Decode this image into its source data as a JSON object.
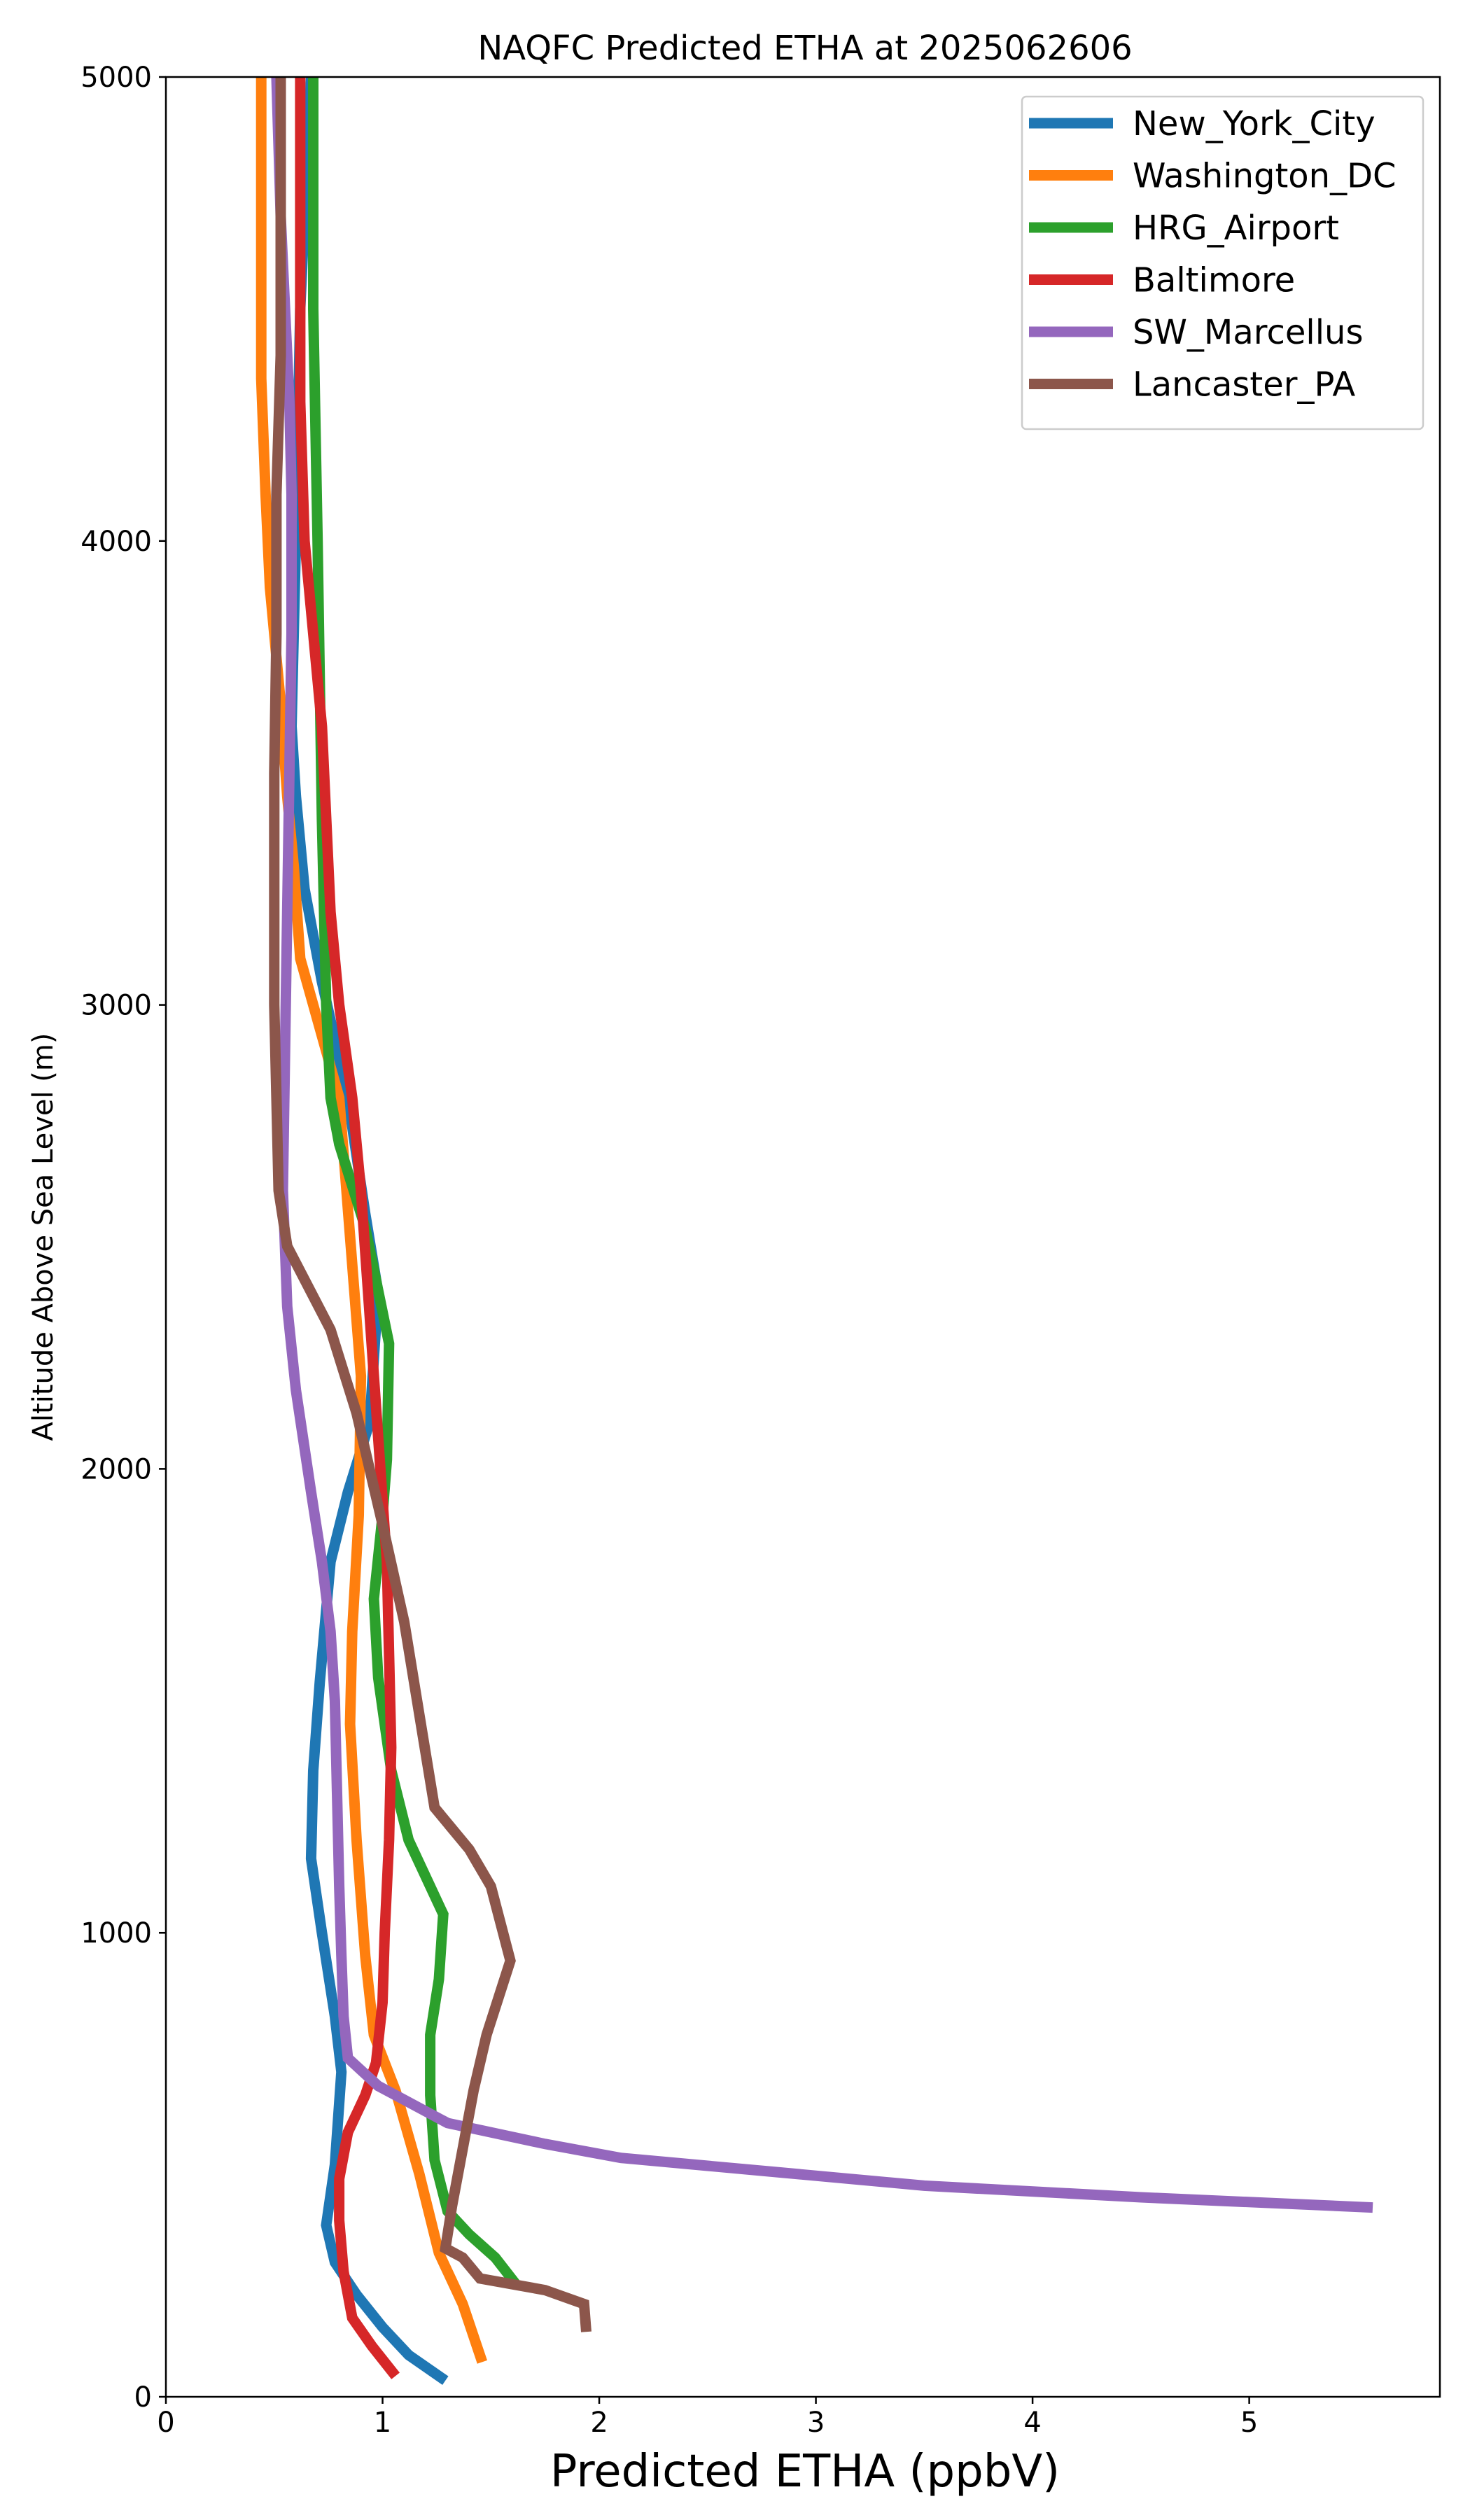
{
  "chart_data": {
    "type": "line",
    "title": "NAQFC Predicted ETHA at 2025062606",
    "xlabel": "Predicted ETHA (ppbV)",
    "ylabel": "Altitude Above Sea Level (m)",
    "xlim": [
      0,
      5.88
    ],
    "ylim": [
      0,
      5000
    ],
    "xticks": [
      0,
      1,
      2,
      3,
      4,
      5
    ],
    "yticks": [
      0,
      1000,
      2000,
      3000,
      4000,
      5000
    ],
    "xtick_labels": [
      "0",
      "1",
      "2",
      "3",
      "4",
      "5"
    ],
    "ytick_labels": [
      "0",
      "1000",
      "2000",
      "3000",
      "4000",
      "5000"
    ],
    "grid": false,
    "legend_position": "top-right",
    "series": [
      {
        "name": "New_York_City",
        "color": "#1f77b4",
        "points": [
          [
            1.29,
            35
          ],
          [
            1.12,
            90
          ],
          [
            1.0,
            150
          ],
          [
            0.88,
            220
          ],
          [
            0.78,
            290
          ],
          [
            0.74,
            370
          ],
          [
            0.78,
            500
          ],
          [
            0.81,
            700
          ],
          [
            0.78,
            820
          ],
          [
            0.72,
            1000
          ],
          [
            0.67,
            1160
          ],
          [
            0.68,
            1350
          ],
          [
            0.71,
            1540
          ],
          [
            0.76,
            1800
          ],
          [
            0.84,
            1950
          ],
          [
            0.94,
            2100
          ],
          [
            0.98,
            2380
          ],
          [
            0.92,
            2550
          ],
          [
            0.84,
            2800
          ],
          [
            0.72,
            3050
          ],
          [
            0.64,
            3250
          ],
          [
            0.6,
            3450
          ],
          [
            0.58,
            3600
          ],
          [
            0.6,
            4000
          ],
          [
            0.62,
            4500
          ],
          [
            0.67,
            5000
          ]
        ]
      },
      {
        "name": "Washington_DC",
        "color": "#ff7f0e",
        "points": [
          [
            1.46,
            75
          ],
          [
            1.37,
            200
          ],
          [
            1.26,
            310
          ],
          [
            1.17,
            480
          ],
          [
            1.06,
            660
          ],
          [
            0.96,
            780
          ],
          [
            0.92,
            950
          ],
          [
            0.88,
            1200
          ],
          [
            0.85,
            1450
          ],
          [
            0.86,
            1650
          ],
          [
            0.89,
            1900
          ],
          [
            0.9,
            2200
          ],
          [
            0.85,
            2500
          ],
          [
            0.8,
            2800
          ],
          [
            0.68,
            3000
          ],
          [
            0.62,
            3100
          ],
          [
            0.59,
            3300
          ],
          [
            0.56,
            3450
          ],
          [
            0.53,
            3650
          ],
          [
            0.48,
            3900
          ],
          [
            0.46,
            4100
          ],
          [
            0.44,
            4350
          ],
          [
            0.44,
            4800
          ],
          [
            0.44,
            5000
          ]
        ]
      },
      {
        "name": "HRG_Airport",
        "color": "#2ca02c",
        "points": [
          [
            1.62,
            240
          ],
          [
            1.52,
            300
          ],
          [
            1.4,
            350
          ],
          [
            1.3,
            400
          ],
          [
            1.24,
            510
          ],
          [
            1.22,
            650
          ],
          [
            1.22,
            780
          ],
          [
            1.26,
            900
          ],
          [
            1.28,
            1040
          ],
          [
            1.12,
            1200
          ],
          [
            1.04,
            1350
          ],
          [
            0.98,
            1550
          ],
          [
            0.96,
            1720
          ],
          [
            1.0,
            1900
          ],
          [
            1.02,
            2020
          ],
          [
            1.03,
            2270
          ],
          [
            0.92,
            2520
          ],
          [
            0.8,
            2700
          ],
          [
            0.76,
            2800
          ],
          [
            0.74,
            3000
          ],
          [
            0.72,
            3400
          ],
          [
            0.7,
            4000
          ],
          [
            0.68,
            4500
          ],
          [
            0.68,
            5000
          ]
        ]
      },
      {
        "name": "Baltimore",
        "color": "#d62728",
        "points": [
          [
            1.06,
            45
          ],
          [
            0.95,
            110
          ],
          [
            0.86,
            170
          ],
          [
            0.82,
            270
          ],
          [
            0.8,
            380
          ],
          [
            0.8,
            470
          ],
          [
            0.84,
            570
          ],
          [
            0.92,
            650
          ],
          [
            0.97,
            720
          ],
          [
            1.0,
            850
          ],
          [
            1.01,
            1000
          ],
          [
            1.03,
            1200
          ],
          [
            1.04,
            1400
          ],
          [
            1.03,
            1600
          ],
          [
            1.02,
            1800
          ],
          [
            0.99,
            2000
          ],
          [
            0.96,
            2200
          ],
          [
            0.93,
            2400
          ],
          [
            0.9,
            2600
          ],
          [
            0.86,
            2800
          ],
          [
            0.8,
            3000
          ],
          [
            0.76,
            3200
          ],
          [
            0.72,
            3600
          ],
          [
            0.68,
            3800
          ],
          [
            0.64,
            4000
          ],
          [
            0.62,
            4300
          ],
          [
            0.62,
            4600
          ],
          [
            0.62,
            5000
          ]
        ]
      },
      {
        "name": "SW_Marcellus",
        "color": "#9467bd",
        "points": [
          [
            5.57,
            408
          ],
          [
            4.5,
            430
          ],
          [
            3.5,
            455
          ],
          [
            2.8,
            485
          ],
          [
            2.1,
            515
          ],
          [
            1.75,
            545
          ],
          [
            1.3,
            590
          ],
          [
            1.1,
            640
          ],
          [
            0.98,
            670
          ],
          [
            0.84,
            730
          ],
          [
            0.82,
            820
          ],
          [
            0.81,
            950
          ],
          [
            0.8,
            1100
          ],
          [
            0.79,
            1300
          ],
          [
            0.78,
            1500
          ],
          [
            0.76,
            1650
          ],
          [
            0.72,
            1800
          ],
          [
            0.67,
            1950
          ],
          [
            0.6,
            2170
          ],
          [
            0.56,
            2350
          ],
          [
            0.54,
            2600
          ],
          [
            0.55,
            2900
          ],
          [
            0.56,
            3200
          ],
          [
            0.57,
            3500
          ],
          [
            0.58,
            3800
          ],
          [
            0.58,
            4100
          ],
          [
            0.57,
            4300
          ],
          [
            0.53,
            4700
          ],
          [
            0.51,
            5000
          ]
        ]
      },
      {
        "name": "Lancaster_PA",
        "color": "#8c564b",
        "points": [
          [
            1.94,
            140
          ],
          [
            1.93,
            200
          ],
          [
            1.75,
            230
          ],
          [
            1.45,
            255
          ],
          [
            1.37,
            300
          ],
          [
            1.29,
            320
          ],
          [
            1.32,
            410
          ],
          [
            1.36,
            510
          ],
          [
            1.42,
            660
          ],
          [
            1.48,
            780
          ],
          [
            1.59,
            940
          ],
          [
            1.5,
            1100
          ],
          [
            1.4,
            1180
          ],
          [
            1.24,
            1270
          ],
          [
            1.17,
            1470
          ],
          [
            1.1,
            1670
          ],
          [
            1.0,
            1880
          ],
          [
            0.88,
            2120
          ],
          [
            0.76,
            2300
          ],
          [
            0.56,
            2480
          ],
          [
            0.52,
            2600
          ],
          [
            0.51,
            2800
          ],
          [
            0.5,
            3000
          ],
          [
            0.5,
            3200
          ],
          [
            0.5,
            3500
          ],
          [
            0.51,
            3800
          ],
          [
            0.51,
            4100
          ],
          [
            0.53,
            4400
          ],
          [
            0.53,
            4700
          ],
          [
            0.53,
            5000
          ]
        ]
      }
    ]
  }
}
